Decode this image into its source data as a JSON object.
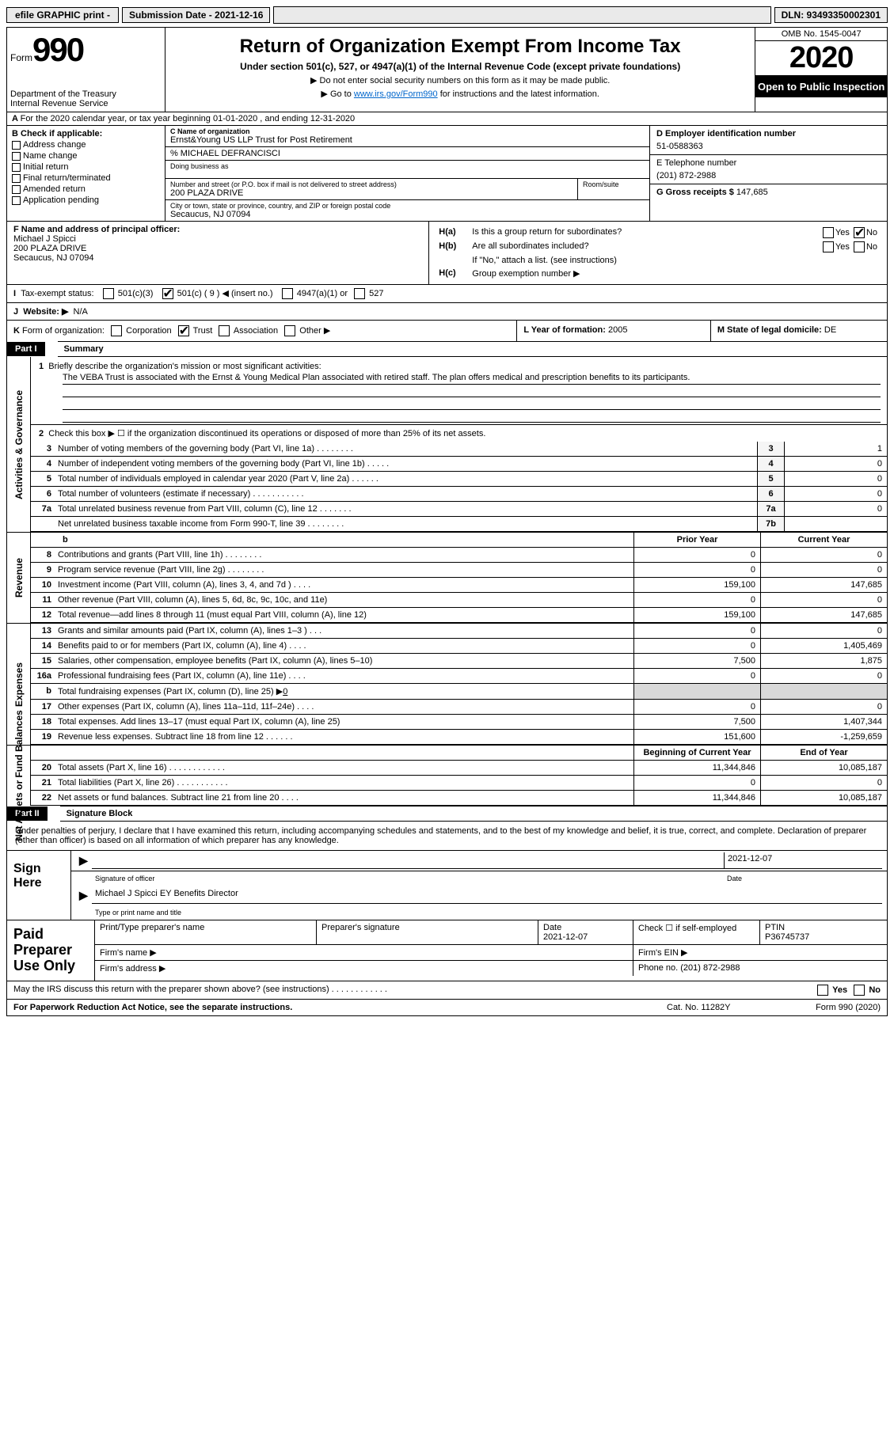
{
  "top": {
    "efile": "efile GRAPHIC print -",
    "submission": "Submission Date - 2021-12-16",
    "dln": "DLN: 93493350002301"
  },
  "header": {
    "form_label": "Form",
    "form_num": "990",
    "dept": "Department of the Treasury\nInternal Revenue Service",
    "title": "Return of Organization Exempt From Income Tax",
    "subtitle": "Under section 501(c), 527, or 4947(a)(1) of the Internal Revenue Code (except private foundations)",
    "instr1": "▶ Do not enter social security numbers on this form as it may be made public.",
    "instr2_pre": "▶ Go to ",
    "instr2_link": "www.irs.gov/Form990",
    "instr2_post": " for instructions and the latest information.",
    "omb": "OMB No. 1545-0047",
    "year": "2020",
    "inspect": "Open to Public Inspection"
  },
  "lineA": "For the 2020 calendar year, or tax year beginning 01-01-2020   , and ending 12-31-2020",
  "B": {
    "label": "B Check if applicable:",
    "items": [
      "Address change",
      "Name change",
      "Initial return",
      "Final return/terminated",
      "Amended return",
      "Application pending"
    ]
  },
  "C": {
    "name_label": "C Name of organization",
    "name": "Ernst&Young US LLP Trust for Post Retirement",
    "care": "% MICHAEL DEFRANCISCI",
    "dba_label": "Doing business as",
    "addr_label": "Number and street (or P.O. box if mail is not delivered to street address)",
    "addr": "200 PLAZA DRIVE",
    "room_label": "Room/suite",
    "city_label": "City or town, state or province, country, and ZIP or foreign postal code",
    "city": "Secaucus, NJ  07094"
  },
  "D": {
    "ein_label": "D Employer identification number",
    "ein": "51-0588363",
    "tel_label": "E Telephone number",
    "tel": "(201) 872-2988",
    "gross_label": "G Gross receipts $",
    "gross": "147,685"
  },
  "F": {
    "label": "F  Name and address of principal officer:",
    "name": "Michael J Spicci",
    "addr": "200 PLAZA DRIVE",
    "city": "Secaucus, NJ  07094"
  },
  "H": {
    "a": "Is this a group return for subordinates?",
    "b": "Are all subordinates included?",
    "b_note": "If \"No,\" attach a list. (see instructions)",
    "c": "Group exemption number ▶",
    "yes": "Yes",
    "no": "No"
  },
  "I": {
    "label": "Tax-exempt status:",
    "o1": "501(c)(3)",
    "o2": "501(c) ( 9 ) ◀ (insert no.)",
    "o3": "4947(a)(1) or",
    "o4": "527"
  },
  "J": {
    "label": "Website: ▶",
    "val": "N/A"
  },
  "K": {
    "label": "Form of organization:",
    "opts": [
      "Corporation",
      "Trust",
      "Association",
      "Other ▶"
    ],
    "L_label": "L Year of formation:",
    "L_val": "2005",
    "M_label": "M State of legal domicile:",
    "M_val": "DE"
  },
  "part1": {
    "num": "Part I",
    "name": "Summary"
  },
  "gov": {
    "label": "Activities & Governance",
    "q1": "Briefly describe the organization's mission or most significant activities:",
    "mission": "The VEBA Trust is associated with the Ernst & Young Medical Plan associated with retired staff. The plan offers medical and prescription benefits to its participants.",
    "q2": "Check this box ▶ ☐  if the organization discontinued its operations or disposed of more than 25% of its net assets.",
    "rows": [
      {
        "n": "3",
        "t": "Number of voting members of the governing body (Part VI, line 1a)  .  .  .  .  .  .  .  .",
        "b": "3",
        "v": "1"
      },
      {
        "n": "4",
        "t": "Number of independent voting members of the governing body (Part VI, line 1b)  .  .  .  .  .",
        "b": "4",
        "v": "0"
      },
      {
        "n": "5",
        "t": "Total number of individuals employed in calendar year 2020 (Part V, line 2a)  .  .  .  .  .  .",
        "b": "5",
        "v": "0"
      },
      {
        "n": "6",
        "t": "Total number of volunteers (estimate if necessary)  .  .  .  .  .  .  .  .  .  .  .",
        "b": "6",
        "v": "0"
      },
      {
        "n": "7a",
        "t": "Total unrelated business revenue from Part VIII, column (C), line 12  .  .  .  .  .  .  .",
        "b": "7a",
        "v": "0"
      },
      {
        "n": "",
        "t": "Net unrelated business taxable income from Form 990-T, line 39  .  .  .  .  .  .  .  .",
        "b": "7b",
        "v": ""
      }
    ]
  },
  "twocol": {
    "prior": "Prior Year",
    "current": "Current Year"
  },
  "rev": {
    "label": "Revenue",
    "rows": [
      {
        "n": "8",
        "t": "Contributions and grants (Part VIII, line 1h)  .  .  .  .  .  .  .  .",
        "p": "0",
        "c": "0"
      },
      {
        "n": "9",
        "t": "Program service revenue (Part VIII, line 2g)  .  .  .  .  .  .  .  .",
        "p": "0",
        "c": "0"
      },
      {
        "n": "10",
        "t": "Investment income (Part VIII, column (A), lines 3, 4, and 7d )  .  .  .  .",
        "p": "159,100",
        "c": "147,685"
      },
      {
        "n": "11",
        "t": "Other revenue (Part VIII, column (A), lines 5, 6d, 8c, 9c, 10c, and 11e)",
        "p": "0",
        "c": "0"
      },
      {
        "n": "12",
        "t": "Total revenue—add lines 8 through 11 (must equal Part VIII, column (A), line 12)",
        "p": "159,100",
        "c": "147,685"
      }
    ]
  },
  "exp": {
    "label": "Expenses",
    "rows": [
      {
        "n": "13",
        "t": "Grants and similar amounts paid (Part IX, column (A), lines 1–3 )  .  .  .",
        "p": "0",
        "c": "0"
      },
      {
        "n": "14",
        "t": "Benefits paid to or for members (Part IX, column (A), line 4)  .  .  .  .",
        "p": "0",
        "c": "1,405,469"
      },
      {
        "n": "15",
        "t": "Salaries, other compensation, employee benefits (Part IX, column (A), lines 5–10)",
        "p": "7,500",
        "c": "1,875"
      },
      {
        "n": "16a",
        "t": "Professional fundraising fees (Part IX, column (A), line 11e)  .  .  .  .",
        "p": "0",
        "c": "0"
      },
      {
        "n": "b",
        "t": "Total fundraising expenses (Part IX, column (D), line 25) ▶",
        "b_val": "0",
        "shade": true
      },
      {
        "n": "17",
        "t": "Other expenses (Part IX, column (A), lines 11a–11d, 11f–24e)  .  .  .  .",
        "p": "0",
        "c": "0"
      },
      {
        "n": "18",
        "t": "Total expenses. Add lines 13–17 (must equal Part IX, column (A), line 25)",
        "p": "7,500",
        "c": "1,407,344"
      },
      {
        "n": "19",
        "t": "Revenue less expenses. Subtract line 18 from line 12  .  .  .  .  .  .",
        "p": "151,600",
        "c": "-1,259,659"
      }
    ]
  },
  "net": {
    "label": "Net Assets or Fund Balances",
    "hdr_p": "Beginning of Current Year",
    "hdr_c": "End of Year",
    "rows": [
      {
        "n": "20",
        "t": "Total assets (Part X, line 16)  .  .  .  .  .  .  .  .  .  .  .  .",
        "p": "11,344,846",
        "c": "10,085,187"
      },
      {
        "n": "21",
        "t": "Total liabilities (Part X, line 26)  .  .  .  .  .  .  .  .  .  .  .",
        "p": "0",
        "c": "0"
      },
      {
        "n": "22",
        "t": "Net assets or fund balances. Subtract line 21 from line 20  .  .  .  .",
        "p": "11,344,846",
        "c": "10,085,187"
      }
    ]
  },
  "part2": {
    "num": "Part II",
    "name": "Signature Block"
  },
  "sig": {
    "penalty": "Under penalties of perjury, I declare that I have examined this return, including accompanying schedules and statements, and to the best of my knowledge and belief, it is true, correct, and complete. Declaration of preparer (other than officer) is based on all information of which preparer has any knowledge.",
    "sign_here": "Sign Here",
    "sig_officer": "Signature of officer",
    "date": "Date",
    "date_val": "2021-12-07",
    "name_title": "Michael J Spicci  EY Benefits Director",
    "name_title_label": "Type or print name and title"
  },
  "prep": {
    "label": "Paid Preparer Use Only",
    "h1": "Print/Type preparer's name",
    "h2": "Preparer's signature",
    "h3": "Date",
    "h3v": "2021-12-07",
    "h4": "Check ☐ if self-employed",
    "h5": "PTIN",
    "h5v": "P36745737",
    "firm_name": "Firm's name   ▶",
    "firm_ein": "Firm's EIN ▶",
    "firm_addr": "Firm's address ▶",
    "phone": "Phone no. (201) 872-2988"
  },
  "discuss": "May the IRS discuss this return with the preparer shown above? (see instructions)  .  .  .  .  .  .  .  .  .  .  .  .",
  "footer": {
    "l": "For Paperwork Reduction Act Notice, see the separate instructions.",
    "m": "Cat. No. 11282Y",
    "r": "Form 990 (2020)"
  }
}
